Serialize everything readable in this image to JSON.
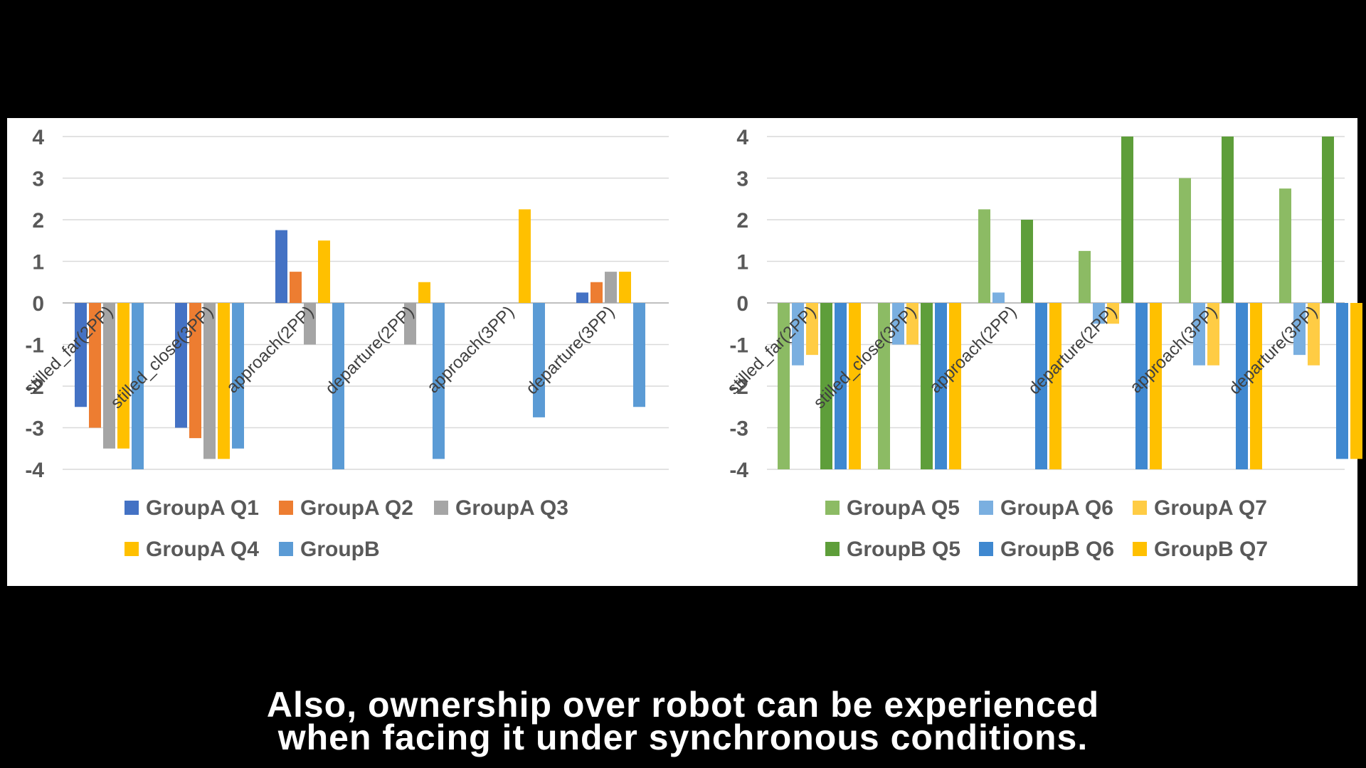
{
  "subtitle": {
    "line1": "Also, ownership over robot can be experienced",
    "line2": "when facing it under synchronous conditions."
  },
  "chart_data": [
    {
      "type": "bar",
      "categories": [
        "stilled_far(2PP)",
        "stilled_close(3PP)",
        "approach(2PP)",
        "departure(2PP)",
        "approach(3PP)",
        "departure(3PP)"
      ],
      "ylim": [
        -4,
        4
      ],
      "yticks": [
        4,
        3,
        2,
        1,
        0,
        -1,
        -2,
        -3,
        -4
      ],
      "grid": true,
      "legend_position": "bottom",
      "series": [
        {
          "name": "GroupA Q1",
          "color": "#4472C4",
          "values": [
            -2.5,
            -3,
            1.75,
            null,
            null,
            0.25
          ]
        },
        {
          "name": "GroupA Q2",
          "color": "#ED7D31",
          "values": [
            -3,
            -3.25,
            0.75,
            null,
            null,
            0.5
          ]
        },
        {
          "name": "GroupA Q3",
          "color": "#A5A5A5",
          "values": [
            -3.5,
            -3.75,
            -1,
            -1,
            null,
            0.75
          ]
        },
        {
          "name": "GroupA Q4",
          "color": "#FFC000",
          "values": [
            -3.5,
            -3.75,
            1.5,
            0.5,
            2.25,
            0.75
          ]
        },
        {
          "name": "GroupB",
          "color": "#5B9BD5",
          "values": [
            -4,
            -3.5,
            -4,
            -3.75,
            -2.75,
            -2.5
          ]
        }
      ]
    },
    {
      "type": "bar",
      "categories": [
        "stilled_far(2PP)",
        "stilled_close(3PP)",
        "approach(2PP)",
        "departure(2PP)",
        "approach(3PP)",
        "departure(3PP)"
      ],
      "ylim": [
        -4,
        4
      ],
      "yticks": [
        4,
        3,
        2,
        1,
        0,
        -1,
        -2,
        -3,
        -4
      ],
      "grid": true,
      "legend_position": "bottom",
      "series": [
        {
          "name": "GroupA Q5",
          "color": "#8CBB64",
          "values": [
            -4,
            -4,
            2.25,
            1.25,
            3,
            2.75
          ]
        },
        {
          "name": "GroupA Q6",
          "color": "#7AAFE0",
          "values": [
            -1.5,
            -1,
            0.25,
            -0.5,
            -1.5,
            -1.25
          ]
        },
        {
          "name": "GroupA Q7",
          "color": "#FFCC44",
          "values": [
            -1.25,
            -1,
            null,
            -0.5,
            -1.5,
            -1.5
          ]
        },
        {
          "name": "GroupB Q5",
          "color": "#5E9E3A",
          "values": [
            -4,
            -4,
            2,
            4,
            4,
            4
          ]
        },
        {
          "name": "GroupB Q6",
          "color": "#3F88D0",
          "values": [
            -4,
            -4,
            -4,
            -4,
            -4,
            -3.75
          ]
        },
        {
          "name": "GroupB Q7",
          "color": "#FFC000",
          "values": [
            -4,
            -4,
            -4,
            -4,
            -4,
            -3.75
          ]
        }
      ]
    }
  ]
}
